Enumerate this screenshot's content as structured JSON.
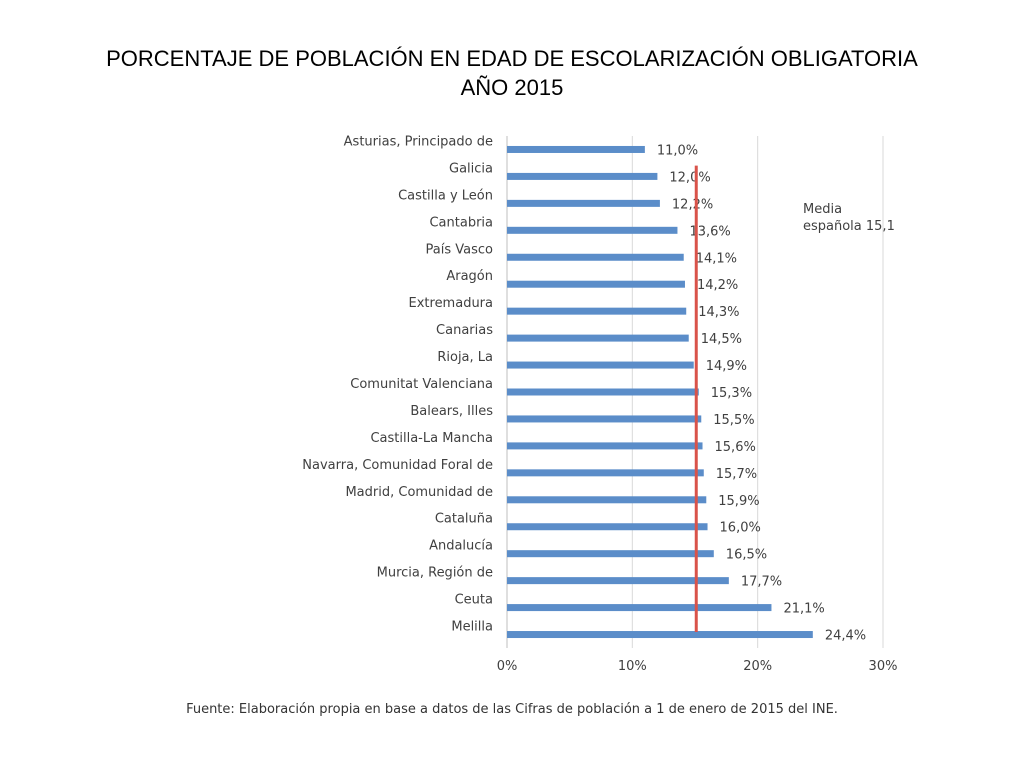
{
  "slide": {
    "title_line1": "PORCENTAJE DE POBLACIÓN EN EDAD DE ESCOLARIZACIÓN OBLIGATORIA",
    "title_line2": "AÑO 2015"
  },
  "chart_data": {
    "type": "bar",
    "orientation": "horizontal",
    "categories": [
      "Asturias, Principado de",
      "Galicia",
      "Castilla y León",
      "Cantabria",
      "País Vasco",
      "Aragón",
      "Extremadura",
      "Canarias",
      "Rioja, La",
      "Comunitat Valenciana",
      "Balears, Illes",
      "Castilla-La Mancha",
      "Navarra, Comunidad Foral de",
      "Madrid, Comunidad de",
      "Cataluña",
      "Andalucía",
      "Murcia, Región de",
      "Ceuta",
      "Melilla"
    ],
    "values": [
      11.0,
      12.0,
      12.2,
      13.6,
      14.1,
      14.2,
      14.3,
      14.5,
      14.9,
      15.3,
      15.5,
      15.6,
      15.7,
      15.9,
      16.0,
      16.5,
      17.7,
      21.1,
      24.4
    ],
    "value_labels": [
      "11,0%",
      "12,0%",
      "12,2%",
      "13,6%",
      "14,1%",
      "14,2%",
      "14,3%",
      "14,5%",
      "14,9%",
      "15,3%",
      "15,5%",
      "15,6%",
      "15,7%",
      "15,9%",
      "16,0%",
      "16,5%",
      "17,7%",
      "21,1%",
      "24,4%"
    ],
    "xlim": [
      0,
      30
    ],
    "xticks": [
      0,
      10,
      20,
      30
    ],
    "xtick_labels": [
      "0%",
      "10%",
      "20%",
      "30%"
    ],
    "grid": true,
    "reference_line": {
      "value": 15.1,
      "label_line1": "Media",
      "label_line2": "española 15,1",
      "color": "#d9534a"
    },
    "bar_color": "#5b8dc9",
    "source": "Fuente: Elaboración propia en base a datos de las Cifras de población a 1 de enero de 2015 del INE."
  }
}
